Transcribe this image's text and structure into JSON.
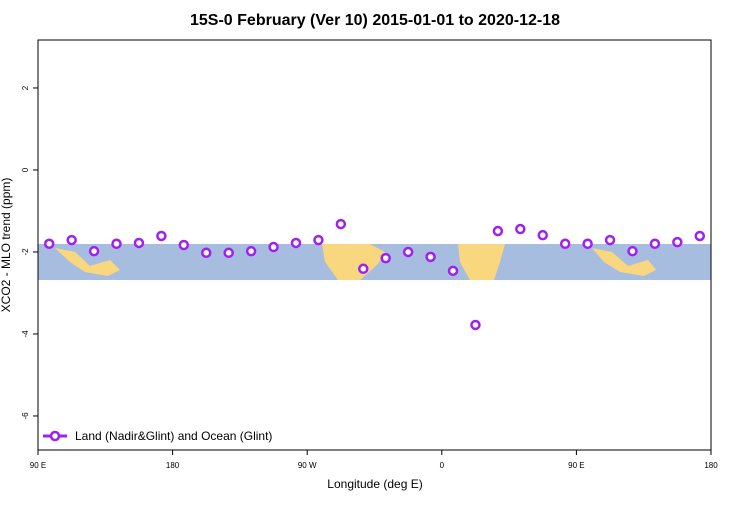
{
  "chart_data": {
    "type": "line",
    "title": "15S-0 February (Ver 10)   2015-01-01 to 2020-12-18",
    "x_label": "Longitude (deg E)",
    "y_label": "XCO2 - MLO trend (ppm)",
    "xlim": [
      90,
      540
    ],
    "xticks": [
      {
        "value": 90,
        "label": "90 E"
      },
      {
        "value": 180,
        "label": "180"
      },
      {
        "value": 270,
        "label": "90 W"
      },
      {
        "value": 360,
        "label": "0"
      },
      {
        "value": 450,
        "label": "90 E"
      },
      {
        "value": 540,
        "label": "180"
      }
    ],
    "ylim": [
      -6.83,
      3.17
    ],
    "yticks": [
      -6,
      -4,
      -2,
      0,
      2
    ],
    "x": [
      97.5,
      112.5,
      127.5,
      142.5,
      157.5,
      172.5,
      187.5,
      202.5,
      217.5,
      232.5,
      247.5,
      262.5,
      277.5,
      292.5,
      307.5,
      322.5,
      337.5,
      352.5,
      367.5,
      382.5,
      397.5,
      412.5,
      427.5,
      442.5,
      457.5,
      472.5,
      487.5,
      502.5,
      517.5,
      532.5
    ],
    "series": [
      {
        "name": "Land (Nadir&Glint) and Ocean (Glint)",
        "color": "#a020f0",
        "values": [
          -1.8,
          -1.71,
          -1.98,
          -1.8,
          -1.78,
          -1.61,
          -1.83,
          -2.02,
          -2.02,
          -1.98,
          -1.88,
          -1.78,
          -1.71,
          -1.32,
          -2.41,
          -2.15,
          -2.0,
          -2.12,
          -2.46,
          -3.78,
          -1.49,
          -1.44,
          -1.59,
          -1.8,
          -1.8,
          -1.71,
          -1.98,
          -1.8,
          -1.76,
          -1.61
        ]
      }
    ],
    "legend": "bottom-left"
  }
}
